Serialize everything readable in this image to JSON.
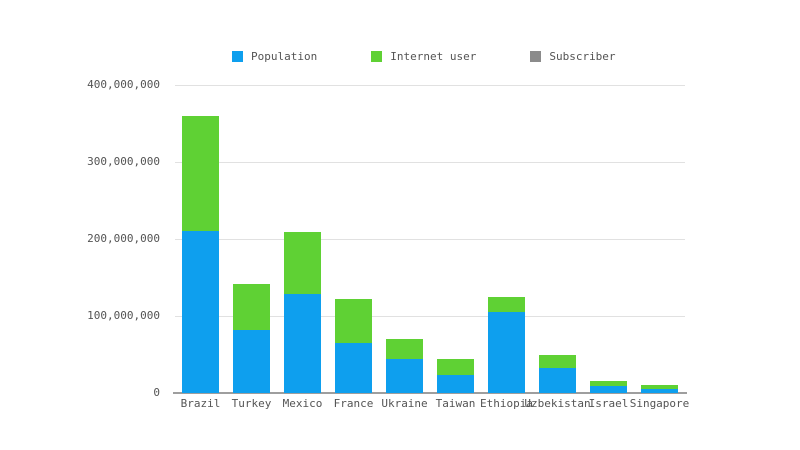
{
  "page": {
    "background": "#ffffff",
    "label_color": "#545454"
  },
  "chart_data": {
    "type": "bar",
    "stacked": true,
    "title": "",
    "xlabel": "",
    "ylabel": "",
    "categories": [
      "Brazil",
      "Turkey",
      "Mexico",
      "France",
      "Ukraine",
      "Taiwan",
      "Ethiopia",
      "Uzbekistan",
      "Israel",
      "Singapore"
    ],
    "series": [
      {
        "name": "Population",
        "color": "#0e9fee",
        "values": [
          210000000,
          82000000,
          129000000,
          65000000,
          44000000,
          23600000,
          105000000,
          32000000,
          8500000,
          5600000
        ]
      },
      {
        "name": "Internet user",
        "color": "#5fd134",
        "values": [
          150000000,
          60000000,
          80000000,
          57000000,
          26000000,
          20500000,
          20000000,
          17000000,
          7000000,
          4900000
        ]
      },
      {
        "name": "Subscriber",
        "color": "#8b8b8b",
        "values": [
          0,
          0,
          0,
          0,
          0,
          0,
          0,
          0,
          0,
          0
        ]
      }
    ],
    "ylim": [
      0,
      400000000
    ],
    "yticks": [
      0,
      100000000,
      200000000,
      300000000,
      400000000
    ],
    "ytick_labels": [
      "0",
      "100,000,000",
      "200,000,000",
      "300,000,000",
      "400,000,000"
    ],
    "grid": true,
    "legend_position": "top",
    "colors": {
      "grid": "#e1e1e1",
      "baseline": "#9e9e9e",
      "label": "#545454"
    }
  }
}
